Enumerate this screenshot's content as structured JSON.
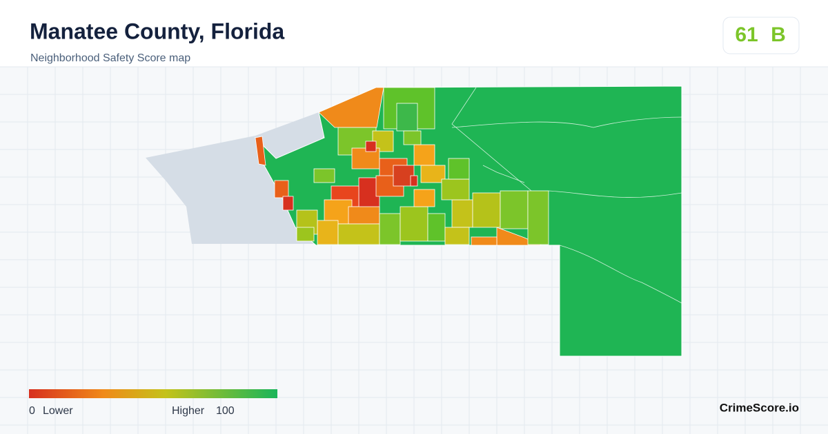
{
  "header": {
    "title": "Manatee County, Florida",
    "subtitle": "Neighborhood Safety Score map"
  },
  "badge": {
    "score": 61,
    "grade": "B"
  },
  "legend": {
    "min": 0,
    "min_label": "Lower",
    "max_label": "Higher",
    "max": 100
  },
  "footer": {
    "brand": "CrimeScore.io"
  }
}
